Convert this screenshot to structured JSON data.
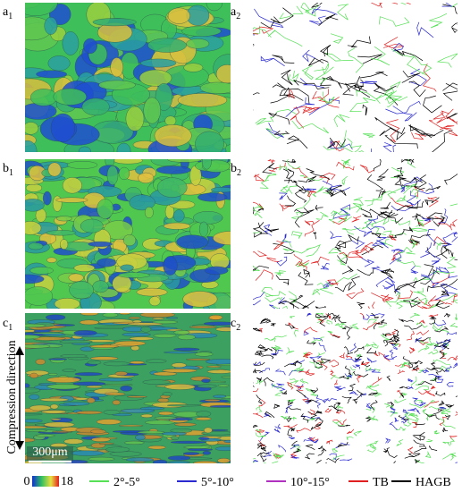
{
  "panels": [
    {
      "letter": "a",
      "sub": "1"
    },
    {
      "letter": "a",
      "sub": "2"
    },
    {
      "letter": "b",
      "sub": "1"
    },
    {
      "letter": "b",
      "sub": "2"
    },
    {
      "letter": "c",
      "sub": "1"
    },
    {
      "letter": "c",
      "sub": "2"
    }
  ],
  "scale_bar": "300μm",
  "direction_label": "Compression direction",
  "color_scale": {
    "min": 0,
    "max": 18
  },
  "legend": [
    {
      "label": "2°-5°",
      "color": "#55e055"
    },
    {
      "label": "5°-10°",
      "color": "#2a2ad0"
    },
    {
      "label": "10°-15°",
      "color": "#b030c0"
    },
    {
      "label": "TB",
      "color": "#e02020"
    },
    {
      "label": "HAGB",
      "color": "#000000"
    }
  ]
}
